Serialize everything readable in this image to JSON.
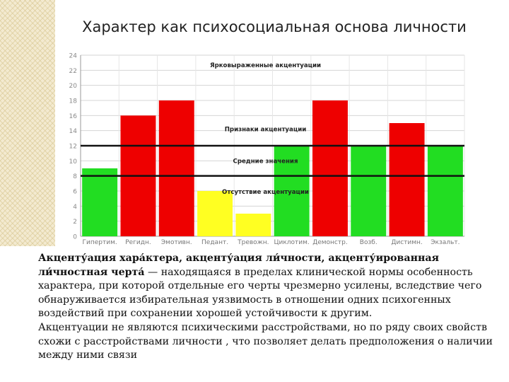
{
  "slide": {
    "title": "Характер как психосоциальная основа личности",
    "def_term": "Акценту́ация хара́ктера, акценту́ация ли́чности, акценту́ированная ли́чностная черта́",
    "def_rest": " — находящаяся в пределах клинической нормы особенность характера, при которой отдельные его черты чрезмерно усилены, вследствие чего обнаруживается избирательная уязвимость в отношении одних психогенных воздействий при сохранении хорошей устойчивости к другим.",
    "para2": "Акцентуации не являются психическими расстройствами, но по ряду своих свойств схожи с расстройствами личности , что позволяет делать предположения о наличии между ними связи"
  },
  "chart_data": {
    "type": "bar",
    "categories": [
      "Гипертим.",
      "Регидн.",
      "Эмотивн.",
      "Педант.",
      "Тревожн.",
      "Циклотим.",
      "Демонстр.",
      "Возб.",
      "Дистимн.",
      "Экзальт."
    ],
    "values": [
      9,
      16,
      18,
      6,
      3,
      12,
      18,
      12,
      15,
      12
    ],
    "colors": [
      "#22dd22",
      "#ee0000",
      "#ee0000",
      "#ffff22",
      "#ffff22",
      "#22dd22",
      "#ee0000",
      "#22dd22",
      "#ee0000",
      "#22dd22"
    ],
    "ylim": [
      0,
      24
    ],
    "yticks": [
      0,
      2,
      4,
      6,
      8,
      10,
      12,
      14,
      16,
      18,
      20,
      22,
      24
    ],
    "reference_lines": [
      12,
      8
    ],
    "zone_labels": [
      {
        "text": "Ярковыраженные акцентуации",
        "y": 22.7
      },
      {
        "text": "Признаки акцентуации",
        "y": 14.2
      },
      {
        "text": "Средние значения",
        "y": 10.0
      },
      {
        "text": "Отсутствие акцентуации",
        "y": 5.9
      }
    ],
    "grid": true
  }
}
